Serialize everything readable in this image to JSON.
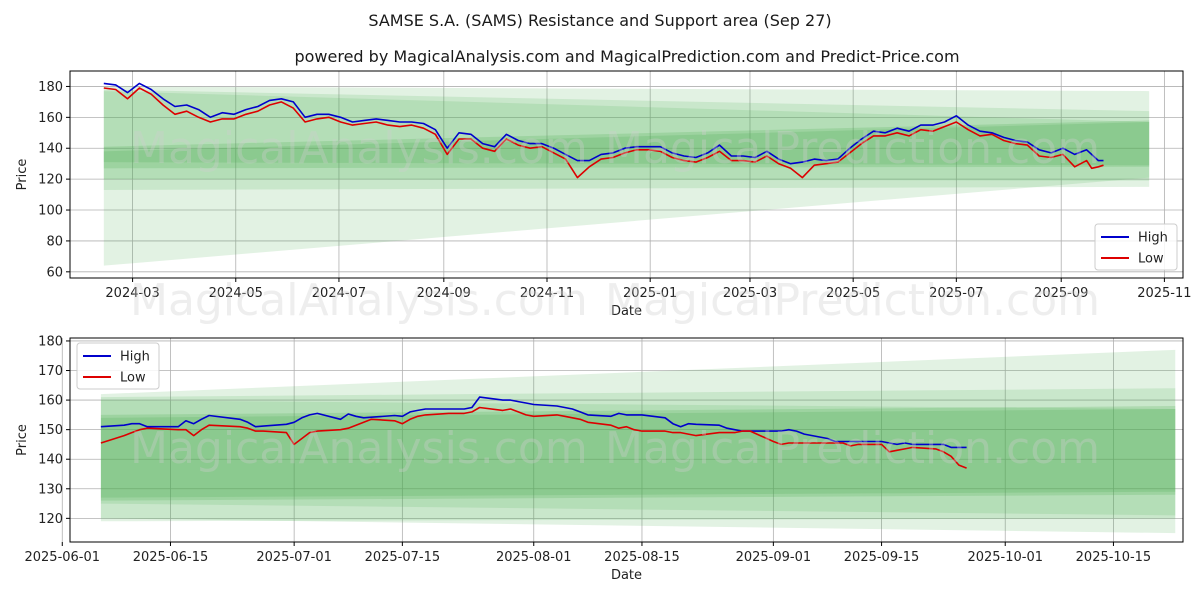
{
  "title": "SAMSE S.A. (SAMS) Resistance and Support area (Sep 27)",
  "subtitle": "powered by MagicalAnalysis.com and MagicalPrediction.com and Predict-Price.com",
  "watermarks": [
    "MagicalAnalysis.com",
    "MagicalPrediction.com"
  ],
  "colors": {
    "high": "#0000cc",
    "low": "#dd0000",
    "band": "#4caf50",
    "grid": "#b0b0b0"
  },
  "chart_data": [
    {
      "type": "line",
      "xlabel": "Date",
      "ylabel": "Price",
      "ylim": [
        56,
        190
      ],
      "xlim": [
        "2024-01-24",
        "2025-11-12"
      ],
      "grid": true,
      "legend": "bottom-right",
      "yticks": [
        60,
        80,
        100,
        120,
        140,
        160,
        180
      ],
      "xticks": [
        "2024-03-01",
        "2024-05-01",
        "2024-07-01",
        "2024-09-01",
        "2024-11-01",
        "2025-01-01",
        "2025-03-01",
        "2025-05-01",
        "2025-07-01",
        "2025-09-01",
        "2025-11-01"
      ],
      "xtick_labels": [
        "2024-03",
        "2024-05",
        "2024-07",
        "2024-09",
        "2024-11",
        "2025-01",
        "2025-03",
        "2025-05",
        "2025-07",
        "2025-09",
        "2025-11"
      ],
      "bands": [
        {
          "x": [
            "2024-02-13",
            "2025-10-23"
          ],
          "upper": [
            180,
            177
          ],
          "lower": [
            64,
            121
          ]
        },
        {
          "x": [
            "2024-02-13",
            "2025-10-23"
          ],
          "upper": [
            178,
            164
          ],
          "lower": [
            113,
            115
          ]
        },
        {
          "x": [
            "2024-02-13",
            "2025-10-23"
          ],
          "upper": [
            177,
            157
          ],
          "lower": [
            120,
            119
          ]
        },
        {
          "x": [
            "2024-02-13",
            "2025-10-23"
          ],
          "upper": [
            141,
            158
          ],
          "lower": [
            127,
            128
          ]
        },
        {
          "x": [
            "2024-02-13",
            "2025-10-23"
          ],
          "upper": [
            138,
            157
          ],
          "lower": [
            131,
            129
          ]
        }
      ],
      "series": [
        {
          "name": "High",
          "x": [
            "2024-02-13",
            "2024-02-20",
            "2024-02-27",
            "2024-03-05",
            "2024-03-12",
            "2024-03-19",
            "2024-03-26",
            "2024-04-02",
            "2024-04-09",
            "2024-04-16",
            "2024-04-23",
            "2024-04-30",
            "2024-05-07",
            "2024-05-14",
            "2024-05-21",
            "2024-05-28",
            "2024-06-04",
            "2024-06-11",
            "2024-06-18",
            "2024-06-25",
            "2024-07-02",
            "2024-07-09",
            "2024-07-16",
            "2024-07-23",
            "2024-07-30",
            "2024-08-06",
            "2024-08-13",
            "2024-08-20",
            "2024-08-27",
            "2024-09-03",
            "2024-09-10",
            "2024-09-17",
            "2024-09-24",
            "2024-10-01",
            "2024-10-08",
            "2024-10-15",
            "2024-10-22",
            "2024-10-29",
            "2024-11-05",
            "2024-11-12",
            "2024-11-19",
            "2024-11-26",
            "2024-12-03",
            "2024-12-10",
            "2024-12-17",
            "2024-12-24",
            "2024-12-31",
            "2025-01-07",
            "2025-01-14",
            "2025-01-21",
            "2025-01-28",
            "2025-02-04",
            "2025-02-11",
            "2025-02-18",
            "2025-02-25",
            "2025-03-04",
            "2025-03-11",
            "2025-03-18",
            "2025-03-25",
            "2025-04-01",
            "2025-04-08",
            "2025-04-15",
            "2025-04-22",
            "2025-04-29",
            "2025-05-06",
            "2025-05-13",
            "2025-05-20",
            "2025-05-27",
            "2025-06-03",
            "2025-06-10",
            "2025-06-17",
            "2025-06-24",
            "2025-07-01",
            "2025-07-08",
            "2025-07-15",
            "2025-07-22",
            "2025-07-29",
            "2025-08-05",
            "2025-08-12",
            "2025-08-19",
            "2025-08-26",
            "2025-09-02",
            "2025-09-09",
            "2025-09-16",
            "2025-09-23",
            "2025-09-26"
          ],
          "values": [
            182,
            181,
            176,
            182,
            178,
            172,
            167,
            168,
            165,
            160,
            163,
            162,
            165,
            167,
            171,
            172,
            170,
            160,
            162,
            162,
            160,
            157,
            158,
            159,
            158,
            157,
            157,
            156,
            152,
            140,
            150,
            149,
            143,
            141,
            149,
            145,
            143,
            143,
            140,
            136,
            132,
            132,
            136,
            137,
            140,
            141,
            141,
            141,
            137,
            135,
            134,
            137,
            142,
            135,
            135,
            134,
            138,
            133,
            130,
            131,
            133,
            132,
            133,
            140,
            146,
            151,
            150,
            153,
            151,
            155,
            155,
            157,
            161,
            155,
            151,
            150,
            147,
            145,
            144,
            139,
            137,
            140,
            136,
            139,
            132,
            132
          ]
        },
        {
          "name": "Low",
          "x": [
            "2024-02-13",
            "2024-02-20",
            "2024-02-27",
            "2024-03-05",
            "2024-03-12",
            "2024-03-19",
            "2024-03-26",
            "2024-04-02",
            "2024-04-09",
            "2024-04-16",
            "2024-04-23",
            "2024-04-30",
            "2024-05-07",
            "2024-05-14",
            "2024-05-21",
            "2024-05-28",
            "2024-06-04",
            "2024-06-11",
            "2024-06-18",
            "2024-06-25",
            "2024-07-02",
            "2024-07-09",
            "2024-07-16",
            "2024-07-23",
            "2024-07-30",
            "2024-08-06",
            "2024-08-13",
            "2024-08-20",
            "2024-08-27",
            "2024-09-03",
            "2024-09-10",
            "2024-09-17",
            "2024-09-24",
            "2024-10-01",
            "2024-10-08",
            "2024-10-15",
            "2024-10-22",
            "2024-10-29",
            "2024-11-05",
            "2024-11-12",
            "2024-11-19",
            "2024-11-26",
            "2024-12-03",
            "2024-12-10",
            "2024-12-17",
            "2024-12-24",
            "2024-12-31",
            "2025-01-07",
            "2025-01-14",
            "2025-01-21",
            "2025-01-28",
            "2025-02-04",
            "2025-02-11",
            "2025-02-18",
            "2025-02-25",
            "2025-03-04",
            "2025-03-11",
            "2025-03-18",
            "2025-03-25",
            "2025-04-01",
            "2025-04-08",
            "2025-04-15",
            "2025-04-22",
            "2025-04-29",
            "2025-05-06",
            "2025-05-13",
            "2025-05-20",
            "2025-05-27",
            "2025-06-03",
            "2025-06-10",
            "2025-06-17",
            "2025-06-24",
            "2025-07-01",
            "2025-07-08",
            "2025-07-15",
            "2025-07-22",
            "2025-07-29",
            "2025-08-05",
            "2025-08-12",
            "2025-08-19",
            "2025-08-26",
            "2025-09-02",
            "2025-09-09",
            "2025-09-16",
            "2025-09-19",
            "2025-09-23",
            "2025-09-26"
          ],
          "values": [
            179,
            178,
            172,
            179,
            175,
            168,
            162,
            164,
            160,
            157,
            159,
            159,
            162,
            164,
            168,
            170,
            166,
            157,
            159,
            160,
            157,
            155,
            156,
            157,
            155,
            154,
            155,
            153,
            149,
            136,
            146,
            146,
            140,
            138,
            146,
            142,
            140,
            141,
            137,
            133,
            121,
            128,
            133,
            134,
            137,
            139,
            139,
            138,
            134,
            132,
            131,
            134,
            138,
            132,
            132,
            131,
            135,
            130,
            127,
            121,
            129,
            130,
            131,
            137,
            143,
            148,
            148,
            150,
            148,
            152,
            151,
            154,
            157,
            152,
            148,
            149,
            145,
            143,
            142,
            135,
            134,
            136,
            128,
            132,
            127,
            128,
            129
          ]
        }
      ]
    },
    {
      "type": "line",
      "xlabel": "Date",
      "ylabel": "Price",
      "ylim": [
        112,
        181
      ],
      "xlim": [
        "2025-06-02",
        "2025-10-24"
      ],
      "grid": true,
      "legend": "top-left",
      "yticks": [
        120,
        130,
        140,
        150,
        160,
        170,
        180
      ],
      "xticks": [
        "2025-06-01",
        "2025-06-15",
        "2025-07-01",
        "2025-07-15",
        "2025-08-01",
        "2025-08-15",
        "2025-09-01",
        "2025-09-15",
        "2025-10-01",
        "2025-10-15"
      ],
      "xtick_labels": [
        "2025-06-01",
        "2025-06-15",
        "2025-07-01",
        "2025-07-15",
        "2025-08-01",
        "2025-08-15",
        "2025-09-01",
        "2025-09-15",
        "2025-10-01",
        "2025-10-15"
      ],
      "bands": [
        {
          "x": [
            "2025-06-06",
            "2025-10-23"
          ],
          "upper": [
            162,
            177
          ],
          "lower": [
            125,
            121
          ]
        },
        {
          "x": [
            "2025-06-06",
            "2025-10-23"
          ],
          "upper": [
            161,
            164
          ],
          "lower": [
            120,
            115
          ]
        },
        {
          "x": [
            "2025-06-06",
            "2025-10-23"
          ],
          "upper": [
            160,
            157
          ],
          "lower": [
            119,
            120
          ]
        },
        {
          "x": [
            "2025-06-06",
            "2025-10-23"
          ],
          "upper": [
            155,
            158
          ],
          "lower": [
            126,
            128
          ]
        },
        {
          "x": [
            "2025-06-06",
            "2025-10-23"
          ],
          "upper": [
            154,
            157
          ],
          "lower": [
            127,
            129
          ]
        }
      ],
      "series": [
        {
          "name": "High",
          "x": [
            "2025-06-06",
            "2025-06-09",
            "2025-06-10",
            "2025-06-11",
            "2025-06-12",
            "2025-06-16",
            "2025-06-17",
            "2025-06-18",
            "2025-06-19",
            "2025-06-20",
            "2025-06-24",
            "2025-06-25",
            "2025-06-26",
            "2025-06-27",
            "2025-06-30",
            "2025-07-01",
            "2025-07-02",
            "2025-07-03",
            "2025-07-04",
            "2025-07-07",
            "2025-07-08",
            "2025-07-09",
            "2025-07-10",
            "2025-07-11",
            "2025-07-14",
            "2025-07-15",
            "2025-07-16",
            "2025-07-17",
            "2025-07-18",
            "2025-07-21",
            "2025-07-22",
            "2025-07-23",
            "2025-07-24",
            "2025-07-25",
            "2025-07-28",
            "2025-07-29",
            "2025-07-30",
            "2025-07-31",
            "2025-08-01",
            "2025-08-04",
            "2025-08-05",
            "2025-08-06",
            "2025-08-07",
            "2025-08-08",
            "2025-08-11",
            "2025-08-12",
            "2025-08-13",
            "2025-08-14",
            "2025-08-15",
            "2025-08-18",
            "2025-08-19",
            "2025-08-20",
            "2025-08-21",
            "2025-08-22",
            "2025-08-25",
            "2025-08-26",
            "2025-08-27",
            "2025-08-28",
            "2025-08-29",
            "2025-09-01",
            "2025-09-02",
            "2025-09-03",
            "2025-09-04",
            "2025-09-05",
            "2025-09-08",
            "2025-09-09",
            "2025-09-10",
            "2025-09-11",
            "2025-09-12",
            "2025-09-15",
            "2025-09-16",
            "2025-09-17",
            "2025-09-18",
            "2025-09-19",
            "2025-09-22",
            "2025-09-23",
            "2025-09-24",
            "2025-09-25",
            "2025-09-26"
          ],
          "values": [
            151,
            151.5,
            152,
            152,
            151,
            151,
            153,
            152,
            153.5,
            154.8,
            153.5,
            152.5,
            151,
            151.2,
            151.8,
            152.5,
            154,
            155,
            155.5,
            153.5,
            155.3,
            154.5,
            154,
            154.2,
            154.8,
            154.5,
            156,
            156.5,
            157,
            157,
            157,
            157,
            157.5,
            161,
            160,
            160,
            159.5,
            159,
            158.5,
            158,
            157.5,
            157,
            156,
            155,
            154.5,
            155.5,
            155,
            155,
            155,
            154,
            152,
            151,
            152,
            151.8,
            151.5,
            150.5,
            150,
            149.5,
            149.5,
            149.5,
            149.5,
            150,
            149.5,
            148.5,
            147,
            146,
            146,
            146,
            146,
            146,
            145.5,
            145,
            145.5,
            145,
            145,
            145,
            144,
            144,
            144
          ]
        },
        {
          "name": "Low",
          "x": [
            "2025-06-06",
            "2025-06-09",
            "2025-06-10",
            "2025-06-11",
            "2025-06-12",
            "2025-06-16",
            "2025-06-17",
            "2025-06-18",
            "2025-06-19",
            "2025-06-20",
            "2025-06-24",
            "2025-06-25",
            "2025-06-26",
            "2025-06-27",
            "2025-06-30",
            "2025-07-01",
            "2025-07-02",
            "2025-07-03",
            "2025-07-04",
            "2025-07-07",
            "2025-07-08",
            "2025-07-09",
            "2025-07-10",
            "2025-07-11",
            "2025-07-14",
            "2025-07-15",
            "2025-07-16",
            "2025-07-17",
            "2025-07-18",
            "2025-07-21",
            "2025-07-22",
            "2025-07-23",
            "2025-07-24",
            "2025-07-25",
            "2025-07-28",
            "2025-07-29",
            "2025-07-30",
            "2025-07-31",
            "2025-08-01",
            "2025-08-04",
            "2025-08-05",
            "2025-08-06",
            "2025-08-07",
            "2025-08-08",
            "2025-08-11",
            "2025-08-12",
            "2025-08-13",
            "2025-08-14",
            "2025-08-15",
            "2025-08-18",
            "2025-08-19",
            "2025-08-20",
            "2025-08-21",
            "2025-08-22",
            "2025-08-25",
            "2025-08-26",
            "2025-08-27",
            "2025-08-28",
            "2025-08-29",
            "2025-09-01",
            "2025-09-02",
            "2025-09-03",
            "2025-09-04",
            "2025-09-05",
            "2025-09-08",
            "2025-09-09",
            "2025-09-10",
            "2025-09-11",
            "2025-09-12",
            "2025-09-15",
            "2025-09-16",
            "2025-09-17",
            "2025-09-18",
            "2025-09-19",
            "2025-09-22",
            "2025-09-23",
            "2025-09-24",
            "2025-09-25",
            "2025-09-26"
          ],
          "values": [
            145.5,
            148,
            149,
            150,
            150.5,
            150,
            150,
            148,
            150,
            151.5,
            151,
            150.5,
            149.5,
            149.5,
            149,
            145,
            147,
            149,
            149.5,
            150,
            150.5,
            151.5,
            152.5,
            153.5,
            153,
            152,
            153.5,
            154.5,
            155,
            155.5,
            155.5,
            155.5,
            156,
            157.5,
            156.5,
            157,
            156,
            155,
            154.5,
            155,
            154.5,
            154,
            153.5,
            152.5,
            151.5,
            150.5,
            151,
            150,
            149.5,
            149.5,
            149,
            149,
            148.5,
            148,
            149,
            149,
            149,
            149.5,
            149.5,
            146,
            145,
            145.5,
            145.5,
            145.5,
            145.5,
            145.5,
            145.5,
            144.5,
            145,
            145,
            142.5,
            143,
            143.5,
            144,
            143.5,
            142.5,
            141,
            138,
            137
          ]
        }
      ]
    }
  ]
}
